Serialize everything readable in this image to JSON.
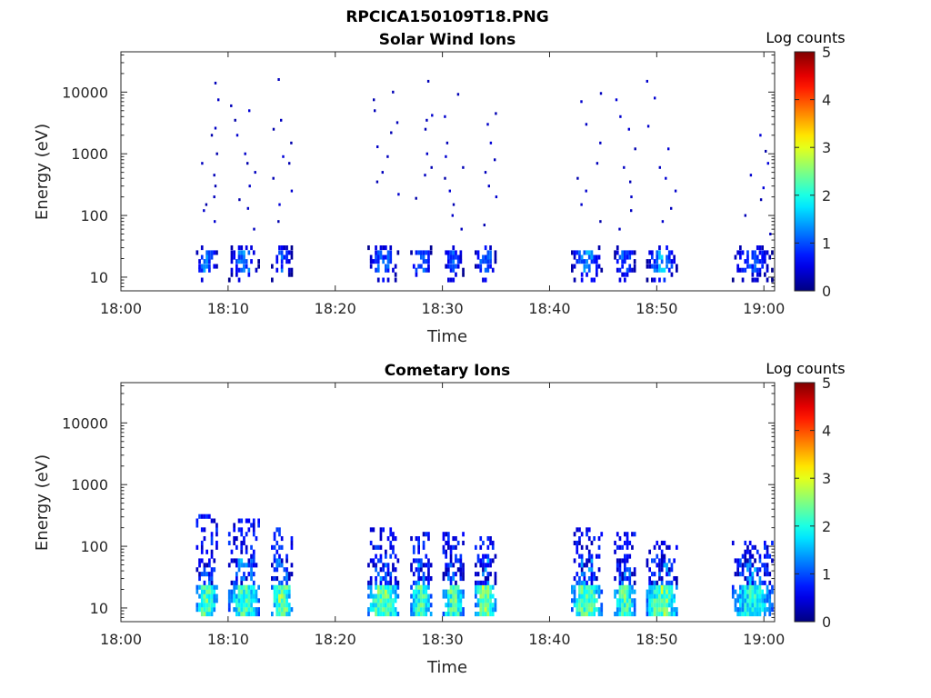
{
  "figure": {
    "title": "RPCICA150109T18.PNG"
  },
  "chart_data": [
    {
      "type": "heatmap",
      "title": "Solar Wind Ions",
      "xlabel": "Time",
      "ylabel": "Energy (eV)",
      "yscale": "log",
      "ylim": [
        6,
        45000
      ],
      "xlim": [
        "18:00",
        "19:01"
      ],
      "x_ticks": [
        "18:00",
        "18:10",
        "18:20",
        "18:30",
        "18:40",
        "18:50",
        "19:00"
      ],
      "y_ticks": [
        "10",
        "100",
        "1000",
        "10000"
      ],
      "colorbar": {
        "label": "Log counts",
        "range": [
          0,
          5
        ],
        "ticks": [
          "0",
          "1",
          "2",
          "3",
          "4",
          "5"
        ]
      },
      "colormap": "jet",
      "bursts": [
        {
          "start": "18:07",
          "end": "18:09",
          "peak_log_counts": 1.6,
          "sparse_events_eV": [
            2600,
            2000,
            1000,
            700,
            450,
            300,
            200,
            150,
            120,
            80,
            7500,
            14000
          ]
        },
        {
          "start": "18:10",
          "end": "18:13",
          "peak_log_counts": 1.5,
          "sparse_events_eV": [
            6000,
            5000,
            3500,
            2000,
            1000,
            700,
            500,
            300,
            180,
            130,
            60
          ]
        },
        {
          "start": "18:14",
          "end": "18:16",
          "peak_log_counts": 1.3,
          "sparse_events_eV": [
            16000,
            3500,
            2500,
            1500,
            900,
            700,
            400,
            250,
            150,
            80
          ]
        },
        {
          "start": "18:23",
          "end": "18:26",
          "peak_log_counts": 1.4,
          "sparse_events_eV": [
            10000,
            7500,
            5000,
            3200,
            2200,
            1300,
            900,
            500,
            350,
            220
          ]
        },
        {
          "start": "18:27",
          "end": "18:29",
          "peak_log_counts": 1.5,
          "sparse_events_eV": [
            15000,
            3500,
            2500,
            1000,
            600,
            450,
            190,
            4200
          ]
        },
        {
          "start": "18:30",
          "end": "18:32",
          "peak_log_counts": 1.3,
          "sparse_events_eV": [
            9200,
            4000,
            1500,
            900,
            600,
            400,
            250,
            150,
            100,
            60
          ]
        },
        {
          "start": "18:33",
          "end": "18:35",
          "peak_log_counts": 1.6,
          "sparse_events_eV": [
            4500,
            3000,
            1500,
            800,
            500,
            300,
            200,
            70
          ]
        },
        {
          "start": "18:42",
          "end": "18:45",
          "peak_log_counts": 1.7,
          "sparse_events_eV": [
            9500,
            7000,
            3000,
            1500,
            700,
            400,
            250,
            150,
            80
          ]
        },
        {
          "start": "18:46",
          "end": "18:48",
          "peak_log_counts": 1.4,
          "sparse_events_eV": [
            7500,
            4000,
            2500,
            1200,
            600,
            350,
            200,
            120,
            60
          ]
        },
        {
          "start": "18:49",
          "end": "18:52",
          "peak_log_counts": 1.8,
          "sparse_events_eV": [
            15000,
            8000,
            2800,
            1200,
            600,
            400,
            250,
            130,
            80
          ]
        },
        {
          "start": "18:57",
          "end": "19:01",
          "peak_log_counts": 1.2,
          "sparse_events_eV": [
            2000,
            1100,
            700,
            450,
            280,
            180,
            100,
            50
          ]
        }
      ]
    },
    {
      "type": "heatmap",
      "title": "Cometary Ions",
      "xlabel": "Time",
      "ylabel": "Energy (eV)",
      "yscale": "log",
      "ylim": [
        6,
        45000
      ],
      "xlim": [
        "18:00",
        "19:01"
      ],
      "x_ticks": [
        "18:00",
        "18:10",
        "18:20",
        "18:30",
        "18:40",
        "18:50",
        "19:00"
      ],
      "y_ticks": [
        "10",
        "100",
        "1000",
        "10000"
      ],
      "colorbar": {
        "label": "Log counts",
        "range": [
          0,
          5
        ],
        "ticks": [
          "0",
          "1",
          "2",
          "3",
          "4",
          "5"
        ]
      },
      "colormap": "jet",
      "bursts": [
        {
          "start": "18:07",
          "end": "18:09",
          "peak_log_counts": 2.8,
          "emax_eV": 350
        },
        {
          "start": "18:10",
          "end": "18:13",
          "peak_log_counts": 2.6,
          "emax_eV": 300
        },
        {
          "start": "18:14",
          "end": "18:16",
          "peak_log_counts": 3.0,
          "emax_eV": 200
        },
        {
          "start": "18:23",
          "end": "18:26",
          "peak_log_counts": 3.0,
          "emax_eV": 200
        },
        {
          "start": "18:27",
          "end": "18:29",
          "peak_log_counts": 2.7,
          "emax_eV": 170
        },
        {
          "start": "18:30",
          "end": "18:32",
          "peak_log_counts": 2.8,
          "emax_eV": 160
        },
        {
          "start": "18:33",
          "end": "18:35",
          "peak_log_counts": 3.1,
          "emax_eV": 150
        },
        {
          "start": "18:42",
          "end": "18:45",
          "peak_log_counts": 2.9,
          "emax_eV": 210
        },
        {
          "start": "18:46",
          "end": "18:48",
          "peak_log_counts": 2.8,
          "emax_eV": 180
        },
        {
          "start": "18:49",
          "end": "18:52",
          "peak_log_counts": 3.0,
          "emax_eV": 120
        },
        {
          "start": "18:57",
          "end": "19:01",
          "peak_log_counts": 2.4,
          "emax_eV": 130
        }
      ]
    }
  ]
}
